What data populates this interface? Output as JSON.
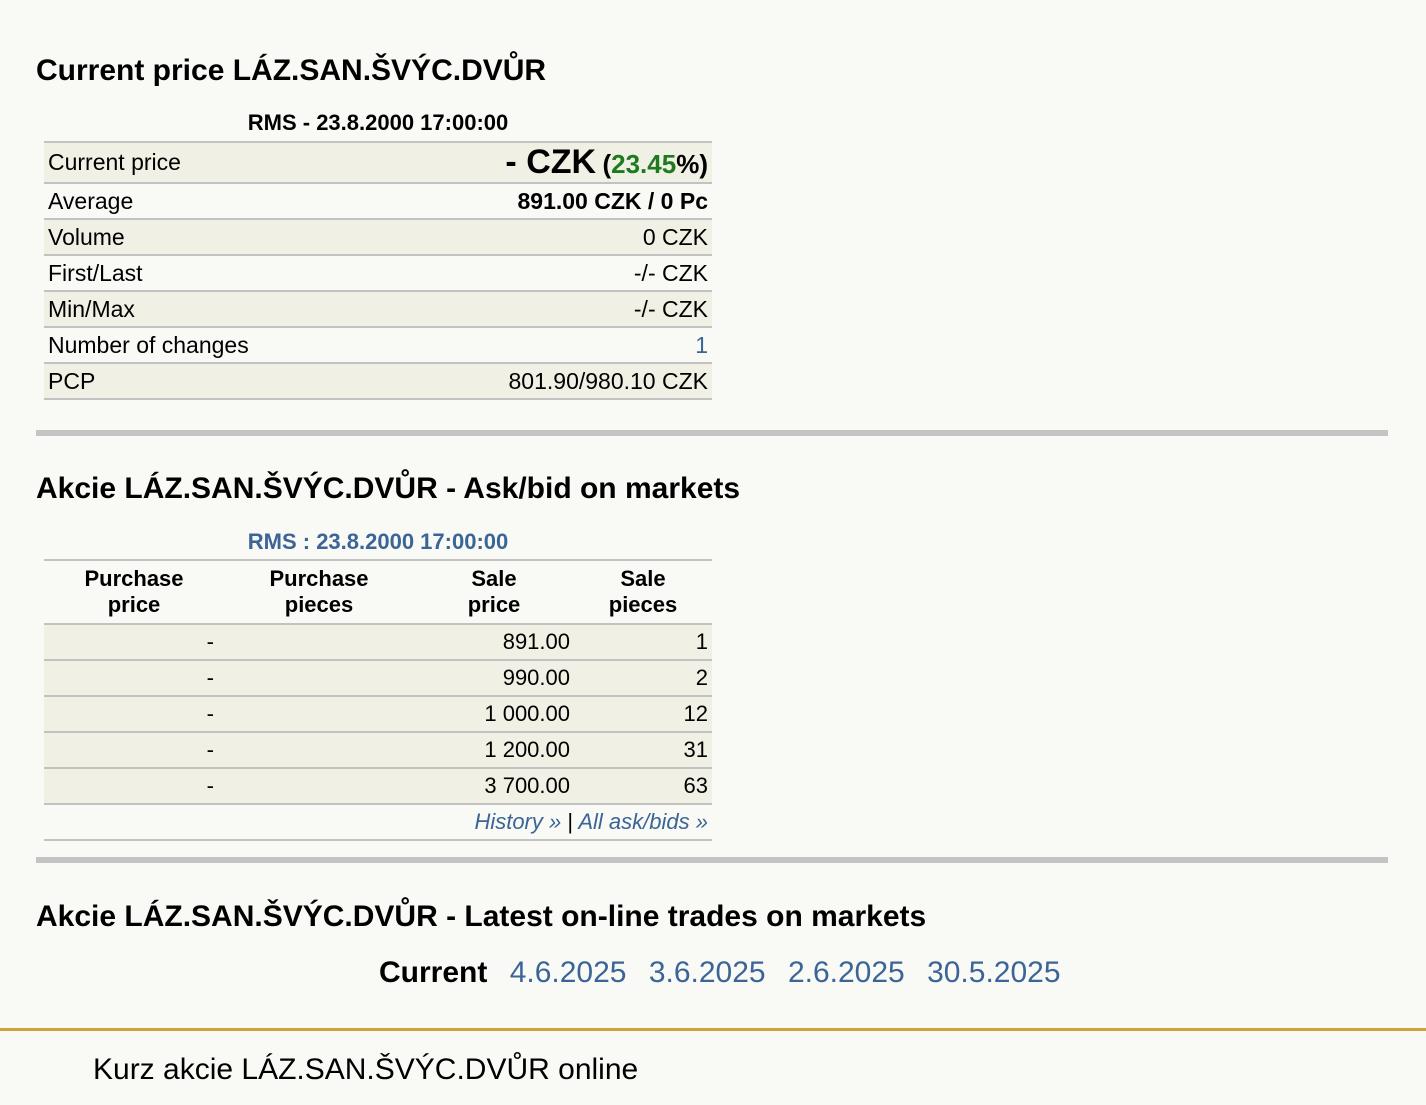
{
  "section1": {
    "title": "Current price LÁZ.SAN.ŠVÝC.DVŮR",
    "caption": "RMS - 23.8.2000 17:00:00",
    "rows": {
      "current_label": "Current price",
      "current_value": "- CZK",
      "current_change": "23.45",
      "average_label": "Average",
      "average_value": "891.00 CZK / 0 Pc",
      "volume_label": "Volume",
      "volume_value": "0 CZK",
      "firstlast_label": "First/Last",
      "firstlast_value": "-/- CZK",
      "minmax_label": "Min/Max",
      "minmax_value": "-/- CZK",
      "changes_label": "Number of changes",
      "changes_value": "1",
      "pcp_label": "PCP",
      "pcp_value": "801.90/980.10 CZK"
    }
  },
  "section2": {
    "title": "Akcie LÁZ.SAN.ŠVÝC.DVŮR - Ask/bid on markets",
    "caption": "RMS : 23.8.2000 17:00:00",
    "headers": {
      "purchase_price_1": "Purchase",
      "purchase_price_2": "price",
      "purchase_pieces_1": "Purchase",
      "purchase_pieces_2": "pieces",
      "sale_price_1": "Sale",
      "sale_price_2": "price",
      "sale_pieces_1": "Sale",
      "sale_pieces_2": "pieces"
    },
    "rows": [
      {
        "pp": "-",
        "ppc": "",
        "sp": "891.00",
        "spc": "1"
      },
      {
        "pp": "-",
        "ppc": "",
        "sp": "990.00",
        "spc": "2"
      },
      {
        "pp": "-",
        "ppc": "",
        "sp": "1 000.00",
        "spc": "12"
      },
      {
        "pp": "-",
        "ppc": "",
        "sp": "1 200.00",
        "spc": "31"
      },
      {
        "pp": "-",
        "ppc": "",
        "sp": "3 700.00",
        "spc": "63"
      }
    ],
    "links": {
      "history": "History »",
      "sep": "|",
      "all": "All ask/bids »"
    }
  },
  "section3": {
    "title": "Akcie LÁZ.SAN.ŠVÝC.DVŮR - Latest on-line trades on markets",
    "current": "Current",
    "dates": [
      "4.6.2025",
      "3.6.2025",
      "2.6.2025",
      "30.5.2025"
    ]
  },
  "footer": {
    "text": "Kurz akcie LÁZ.SAN.ŠVÝC.DVŮR online"
  },
  "colors": {
    "link": "#3a6596",
    "green": "#1e7a1e",
    "accent": "#c9a53a"
  }
}
